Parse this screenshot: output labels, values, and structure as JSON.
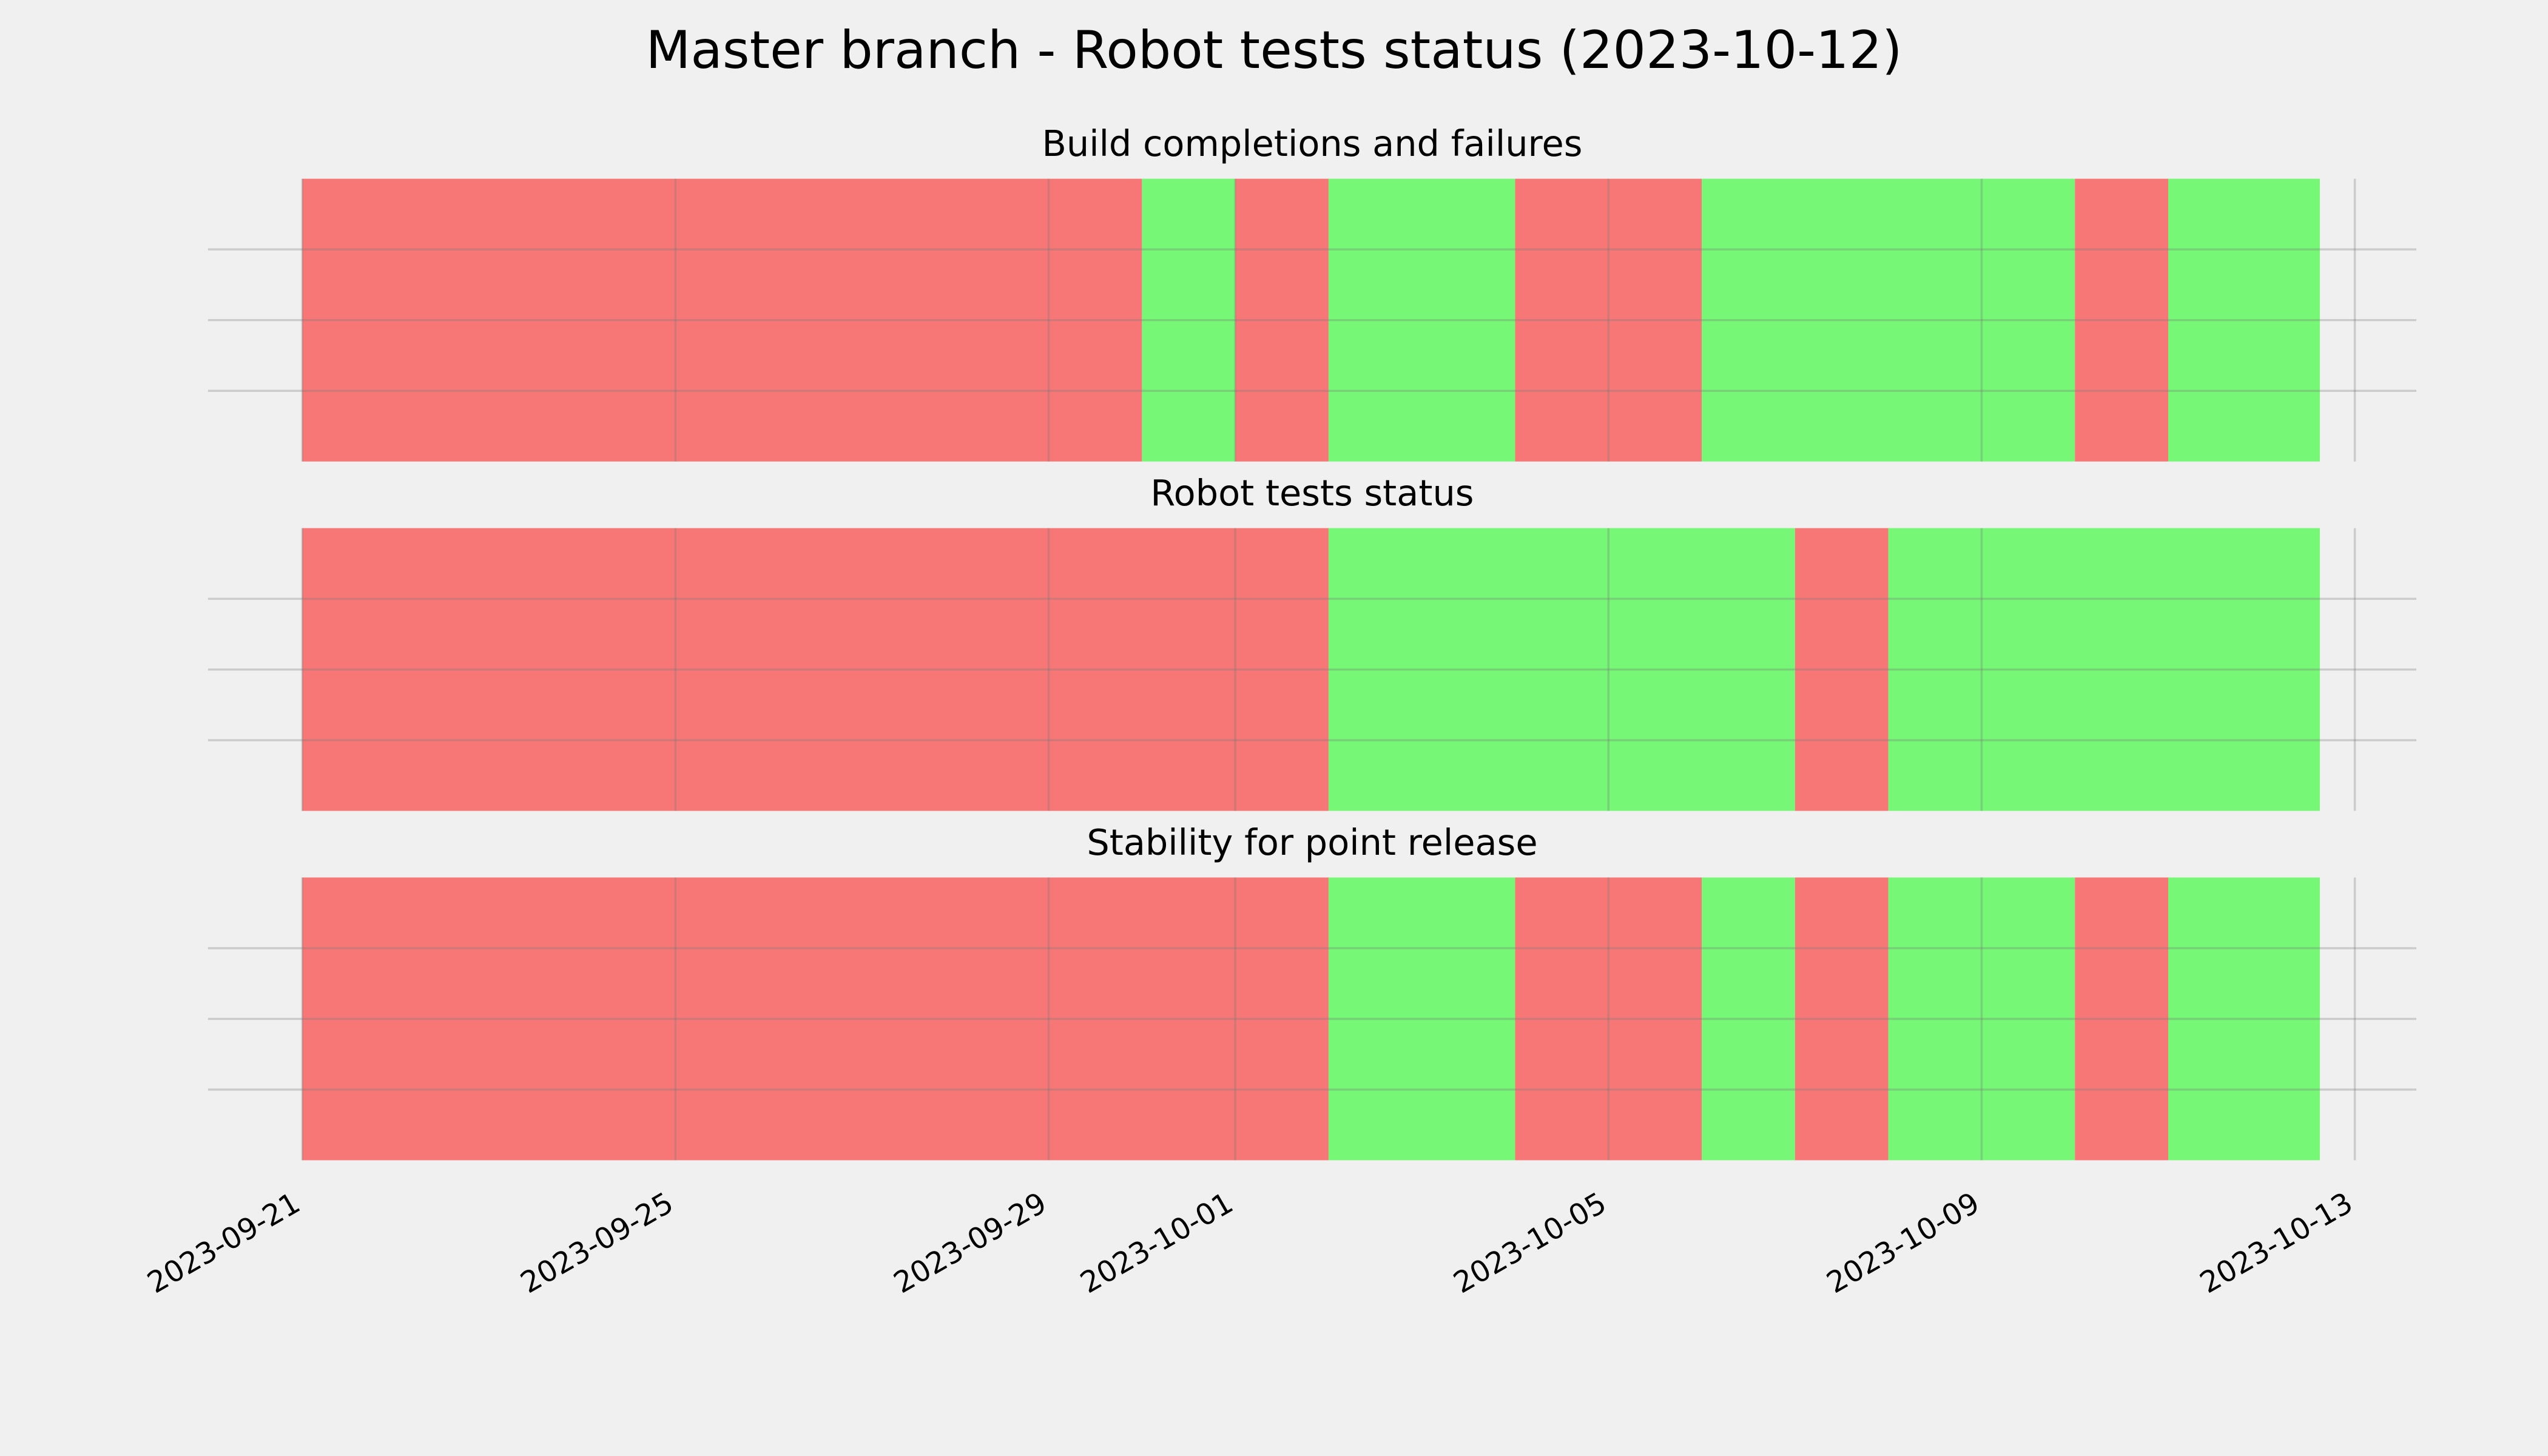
{
  "title": "Master branch - Robot tests status (2023-10-12)",
  "chart_data": [
    {
      "type": "timeline",
      "title": "Build completions and failures",
      "segments": [
        {
          "start": "2023-09-21",
          "end": "2023-09-30",
          "color": "#f77777"
        },
        {
          "start": "2023-09-30",
          "end": "2023-10-01",
          "color": "#76f776"
        },
        {
          "start": "2023-10-01",
          "end": "2023-10-02",
          "color": "#f77777"
        },
        {
          "start": "2023-10-02",
          "end": "2023-10-04",
          "color": "#76f776"
        },
        {
          "start": "2023-10-04",
          "end": "2023-10-06",
          "color": "#f77777"
        },
        {
          "start": "2023-10-06",
          "end": "2023-10-10",
          "color": "#76f776"
        },
        {
          "start": "2023-10-10",
          "end": "2023-10-11",
          "color": "#f77777"
        },
        {
          "start": "2023-10-11",
          "end": "2023-10-12T15:00:00Z",
          "color": "#76f776"
        }
      ],
      "xlim": [
        "2023-09-19T23:45:00Z",
        "2023-10-13T15:50:00Z"
      ],
      "xticks": [
        "2023-09-21",
        "2023-09-25",
        "2023-09-29",
        "2023-10-01",
        "2023-10-05",
        "2023-10-09",
        "2023-10-13"
      ],
      "ylim": [
        0,
        1
      ],
      "yticks": [
        0.25,
        0.5,
        0.75
      ],
      "grid": true,
      "show_xtick_labels": false
    },
    {
      "type": "timeline",
      "title": "Robot tests status",
      "segments": [
        {
          "start": "2023-09-21",
          "end": "2023-10-02",
          "color": "#f77777"
        },
        {
          "start": "2023-10-02",
          "end": "2023-10-07",
          "color": "#76f776"
        },
        {
          "start": "2023-10-07",
          "end": "2023-10-08",
          "color": "#f77777"
        },
        {
          "start": "2023-10-08",
          "end": "2023-10-12T15:00:00Z",
          "color": "#76f776"
        }
      ],
      "xlim": [
        "2023-09-19T23:45:00Z",
        "2023-10-13T15:50:00Z"
      ],
      "xticks": [
        "2023-09-21",
        "2023-09-25",
        "2023-09-29",
        "2023-10-01",
        "2023-10-05",
        "2023-10-09",
        "2023-10-13"
      ],
      "ylim": [
        0,
        1
      ],
      "yticks": [
        0.25,
        0.5,
        0.75
      ],
      "grid": true,
      "show_xtick_labels": false
    },
    {
      "type": "timeline",
      "title": "Stability for point release",
      "segments": [
        {
          "start": "2023-09-21",
          "end": "2023-10-02",
          "color": "#f77777"
        },
        {
          "start": "2023-10-02",
          "end": "2023-10-04",
          "color": "#76f776"
        },
        {
          "start": "2023-10-04",
          "end": "2023-10-06",
          "color": "#f77777"
        },
        {
          "start": "2023-10-06",
          "end": "2023-10-07",
          "color": "#76f776"
        },
        {
          "start": "2023-10-07",
          "end": "2023-10-08",
          "color": "#f77777"
        },
        {
          "start": "2023-10-08",
          "end": "2023-10-10",
          "color": "#76f776"
        },
        {
          "start": "2023-10-10",
          "end": "2023-10-11",
          "color": "#f77777"
        },
        {
          "start": "2023-10-11",
          "end": "2023-10-12T15:00:00Z",
          "color": "#76f776"
        }
      ],
      "xlim": [
        "2023-09-19T23:45:00Z",
        "2023-10-13T15:50:00Z"
      ],
      "xticks": [
        "2023-09-21",
        "2023-09-25",
        "2023-09-29",
        "2023-10-01",
        "2023-10-05",
        "2023-10-09",
        "2023-10-13"
      ],
      "ylim": [
        0,
        1
      ],
      "yticks": [
        0.25,
        0.5,
        0.75
      ],
      "grid": true,
      "show_xtick_labels": true
    }
  ]
}
